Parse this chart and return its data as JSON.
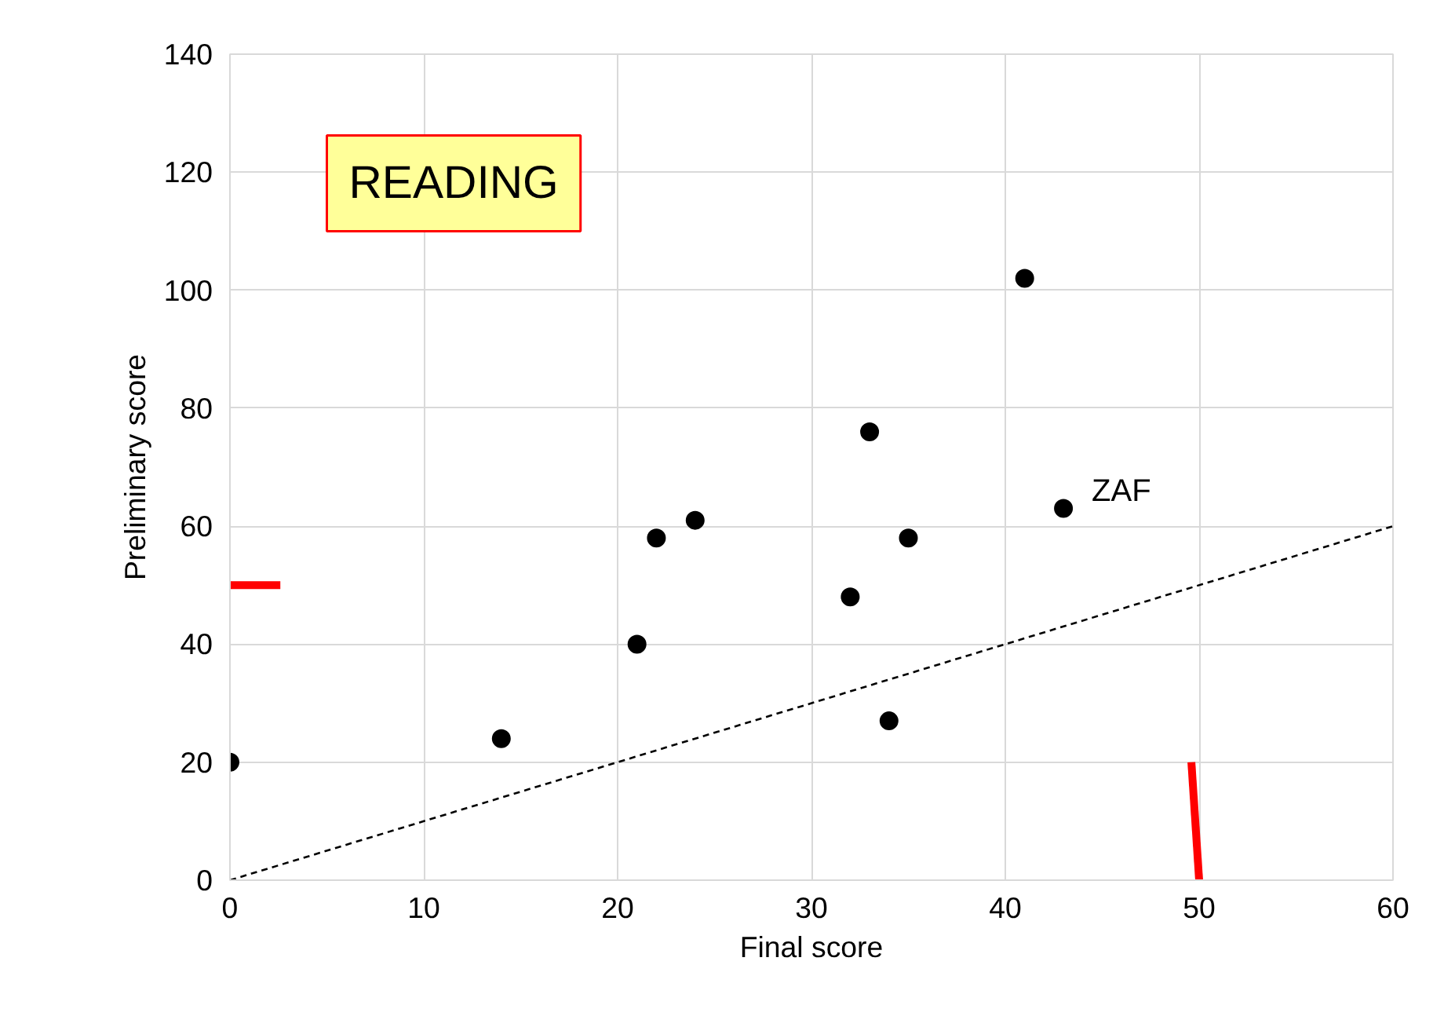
{
  "chart_data": {
    "type": "scatter",
    "xlabel": "Final score",
    "ylabel": "Preliminary score",
    "xlim": [
      0,
      60
    ],
    "ylim": [
      0,
      140
    ],
    "xticks": [
      0,
      10,
      20,
      30,
      40,
      50,
      60
    ],
    "yticks": [
      0,
      20,
      40,
      60,
      80,
      100,
      120,
      140
    ],
    "grid": true,
    "series": [
      {
        "marker": "circle",
        "color": "#000000",
        "x": [
          0,
          14,
          21,
          22,
          24,
          32,
          33,
          34,
          35,
          41,
          43
        ],
        "values": [
          20,
          24,
          40,
          58,
          61,
          48,
          76,
          27,
          58,
          102,
          63
        ]
      },
      {
        "type": "line",
        "color": "#000000",
        "line_style": "dashed",
        "x": [
          0,
          60
        ],
        "values": [
          0,
          60
        ]
      },
      {
        "type": "line",
        "color": "#ff0000",
        "line_style": "solid",
        "x": [
          0,
          2.6
        ],
        "values": [
          50,
          50
        ]
      },
      {
        "type": "line",
        "color": "#ff0000",
        "line_style": "solid",
        "x": [
          49.6,
          50
        ],
        "values": [
          20,
          0
        ]
      }
    ],
    "annotations": [
      "READING",
      {
        "text": "ZAF",
        "x": 43,
        "y": 63
      }
    ]
  }
}
